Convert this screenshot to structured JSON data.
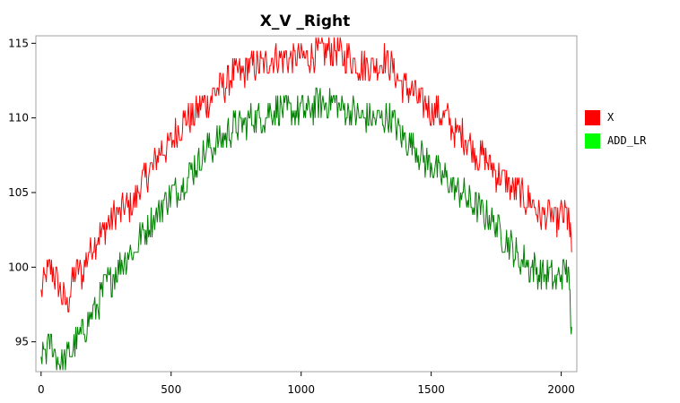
{
  "chart_data": {
    "type": "line",
    "title": "X_V _Right",
    "xlabel": "",
    "ylabel": "",
    "xlim": [
      -20,
      2060
    ],
    "ylim": [
      93,
      115.5
    ],
    "xticks": [
      0,
      500,
      1000,
      1500,
      2000
    ],
    "yticks": [
      95,
      100,
      105,
      110,
      115
    ],
    "grid": false,
    "legend_position": "right",
    "series": [
      {
        "name": "X",
        "color": "#ff0000",
        "points": [
          [
            0,
            98
          ],
          [
            20,
            99.5
          ],
          [
            40,
            100
          ],
          [
            60,
            99
          ],
          [
            80,
            98
          ],
          [
            100,
            97.5
          ],
          [
            120,
            99
          ],
          [
            140,
            100
          ],
          [
            160,
            99.5
          ],
          [
            180,
            101
          ],
          [
            200,
            101.5
          ],
          [
            220,
            102
          ],
          [
            240,
            102.5
          ],
          [
            260,
            103
          ],
          [
            280,
            103.5
          ],
          [
            300,
            103.5
          ],
          [
            320,
            104
          ],
          [
            340,
            104
          ],
          [
            360,
            104.5
          ],
          [
            380,
            105.5
          ],
          [
            400,
            106
          ],
          [
            420,
            106.5
          ],
          [
            440,
            107
          ],
          [
            460,
            108
          ],
          [
            480,
            108
          ],
          [
            500,
            108.5
          ],
          [
            520,
            109
          ],
          [
            540,
            109.5
          ],
          [
            560,
            110
          ],
          [
            580,
            110
          ],
          [
            600,
            110.5
          ],
          [
            620,
            111
          ],
          [
            640,
            111
          ],
          [
            660,
            111.5
          ],
          [
            680,
            112
          ],
          [
            700,
            112
          ],
          [
            720,
            112.5
          ],
          [
            740,
            113
          ],
          [
            760,
            113
          ],
          [
            780,
            113
          ],
          [
            800,
            113.5
          ],
          [
            820,
            113.5
          ],
          [
            840,
            113.5
          ],
          [
            860,
            113.5
          ],
          [
            880,
            114
          ],
          [
            900,
            114
          ],
          [
            920,
            114
          ],
          [
            940,
            114
          ],
          [
            960,
            114
          ],
          [
            980,
            114
          ],
          [
            1000,
            114
          ],
          [
            1020,
            114
          ],
          [
            1040,
            114
          ],
          [
            1060,
            114.5
          ],
          [
            1080,
            114.5
          ],
          [
            1100,
            114.5
          ],
          [
            1120,
            114.5
          ],
          [
            1140,
            114.5
          ],
          [
            1160,
            114
          ],
          [
            1180,
            114
          ],
          [
            1200,
            114
          ],
          [
            1220,
            113.5
          ],
          [
            1240,
            113.5
          ],
          [
            1260,
            113.5
          ],
          [
            1280,
            113.5
          ],
          [
            1300,
            113.5
          ],
          [
            1320,
            114
          ],
          [
            1340,
            113.5
          ],
          [
            1360,
            113
          ],
          [
            1380,
            112.5
          ],
          [
            1400,
            112
          ],
          [
            1420,
            112
          ],
          [
            1440,
            111.5
          ],
          [
            1460,
            111
          ],
          [
            1480,
            111
          ],
          [
            1500,
            110.5
          ],
          [
            1520,
            110.5
          ],
          [
            1540,
            110
          ],
          [
            1560,
            110
          ],
          [
            1580,
            109.5
          ],
          [
            1600,
            109
          ],
          [
            1620,
            109
          ],
          [
            1640,
            108.5
          ],
          [
            1660,
            108
          ],
          [
            1680,
            107.5
          ],
          [
            1700,
            107.5
          ],
          [
            1720,
            107
          ],
          [
            1740,
            106.5
          ],
          [
            1760,
            106
          ],
          [
            1780,
            106
          ],
          [
            1800,
            105.5
          ],
          [
            1820,
            105
          ],
          [
            1840,
            105
          ],
          [
            1860,
            104.5
          ],
          [
            1880,
            104.5
          ],
          [
            1900,
            104
          ],
          [
            1920,
            103.5
          ],
          [
            1940,
            103.5
          ],
          [
            1960,
            103.5
          ],
          [
            1980,
            103
          ],
          [
            2000,
            103.5
          ],
          [
            2020,
            103.5
          ],
          [
            2030,
            103
          ],
          [
            2040,
            101
          ]
        ]
      },
      {
        "name": "ADD_LR",
        "color": "#008000",
        "points": [
          [
            0,
            94
          ],
          [
            20,
            94.5
          ],
          [
            40,
            95
          ],
          [
            60,
            94
          ],
          [
            80,
            93.5
          ],
          [
            100,
            94
          ],
          [
            120,
            94.5
          ],
          [
            140,
            95
          ],
          [
            160,
            95.5
          ],
          [
            180,
            96.5
          ],
          [
            200,
            97
          ],
          [
            220,
            97.5
          ],
          [
            240,
            98.5
          ],
          [
            260,
            99
          ],
          [
            280,
            99.5
          ],
          [
            300,
            100
          ],
          [
            320,
            100.5
          ],
          [
            340,
            101
          ],
          [
            360,
            101
          ],
          [
            380,
            102
          ],
          [
            400,
            102.5
          ],
          [
            420,
            103
          ],
          [
            440,
            103.5
          ],
          [
            460,
            104
          ],
          [
            480,
            104.5
          ],
          [
            500,
            105
          ],
          [
            520,
            105
          ],
          [
            540,
            105.5
          ],
          [
            560,
            106
          ],
          [
            580,
            106.5
          ],
          [
            600,
            107
          ],
          [
            620,
            107.5
          ],
          [
            640,
            108
          ],
          [
            660,
            108
          ],
          [
            680,
            108.5
          ],
          [
            700,
            108.5
          ],
          [
            720,
            109
          ],
          [
            740,
            109.5
          ],
          [
            760,
            109.5
          ],
          [
            780,
            109.5
          ],
          [
            800,
            110
          ],
          [
            820,
            110
          ],
          [
            840,
            110
          ],
          [
            860,
            110
          ],
          [
            880,
            110.5
          ],
          [
            900,
            110.5
          ],
          [
            920,
            110.5
          ],
          [
            940,
            110.5
          ],
          [
            960,
            110.5
          ],
          [
            980,
            110.5
          ],
          [
            1000,
            110.5
          ],
          [
            1020,
            110.5
          ],
          [
            1040,
            110.5
          ],
          [
            1060,
            111
          ],
          [
            1080,
            111
          ],
          [
            1100,
            111
          ],
          [
            1120,
            111
          ],
          [
            1140,
            111
          ],
          [
            1160,
            110.5
          ],
          [
            1180,
            110.5
          ],
          [
            1200,
            110.5
          ],
          [
            1220,
            110
          ],
          [
            1240,
            110
          ],
          [
            1260,
            110
          ],
          [
            1280,
            110
          ],
          [
            1300,
            110
          ],
          [
            1320,
            110
          ],
          [
            1340,
            110
          ],
          [
            1360,
            109.5
          ],
          [
            1380,
            109
          ],
          [
            1400,
            108.5
          ],
          [
            1420,
            108.5
          ],
          [
            1440,
            108
          ],
          [
            1460,
            107.5
          ],
          [
            1480,
            107
          ],
          [
            1500,
            107
          ],
          [
            1520,
            106.5
          ],
          [
            1540,
            106
          ],
          [
            1560,
            106
          ],
          [
            1580,
            105.5
          ],
          [
            1600,
            105
          ],
          [
            1620,
            105
          ],
          [
            1640,
            104.5
          ],
          [
            1660,
            104
          ],
          [
            1680,
            104
          ],
          [
            1700,
            103.5
          ],
          [
            1720,
            103.5
          ],
          [
            1740,
            103
          ],
          [
            1760,
            102.5
          ],
          [
            1780,
            102
          ],
          [
            1800,
            101.5
          ],
          [
            1820,
            101
          ],
          [
            1840,
            100.5
          ],
          [
            1860,
            100.5
          ],
          [
            1880,
            100
          ],
          [
            1900,
            100
          ],
          [
            1920,
            99.5
          ],
          [
            1940,
            99.5
          ],
          [
            1960,
            99.5
          ],
          [
            1980,
            99
          ],
          [
            2000,
            99.5
          ],
          [
            2020,
            100
          ],
          [
            2030,
            99
          ],
          [
            2040,
            96
          ]
        ]
      }
    ]
  }
}
